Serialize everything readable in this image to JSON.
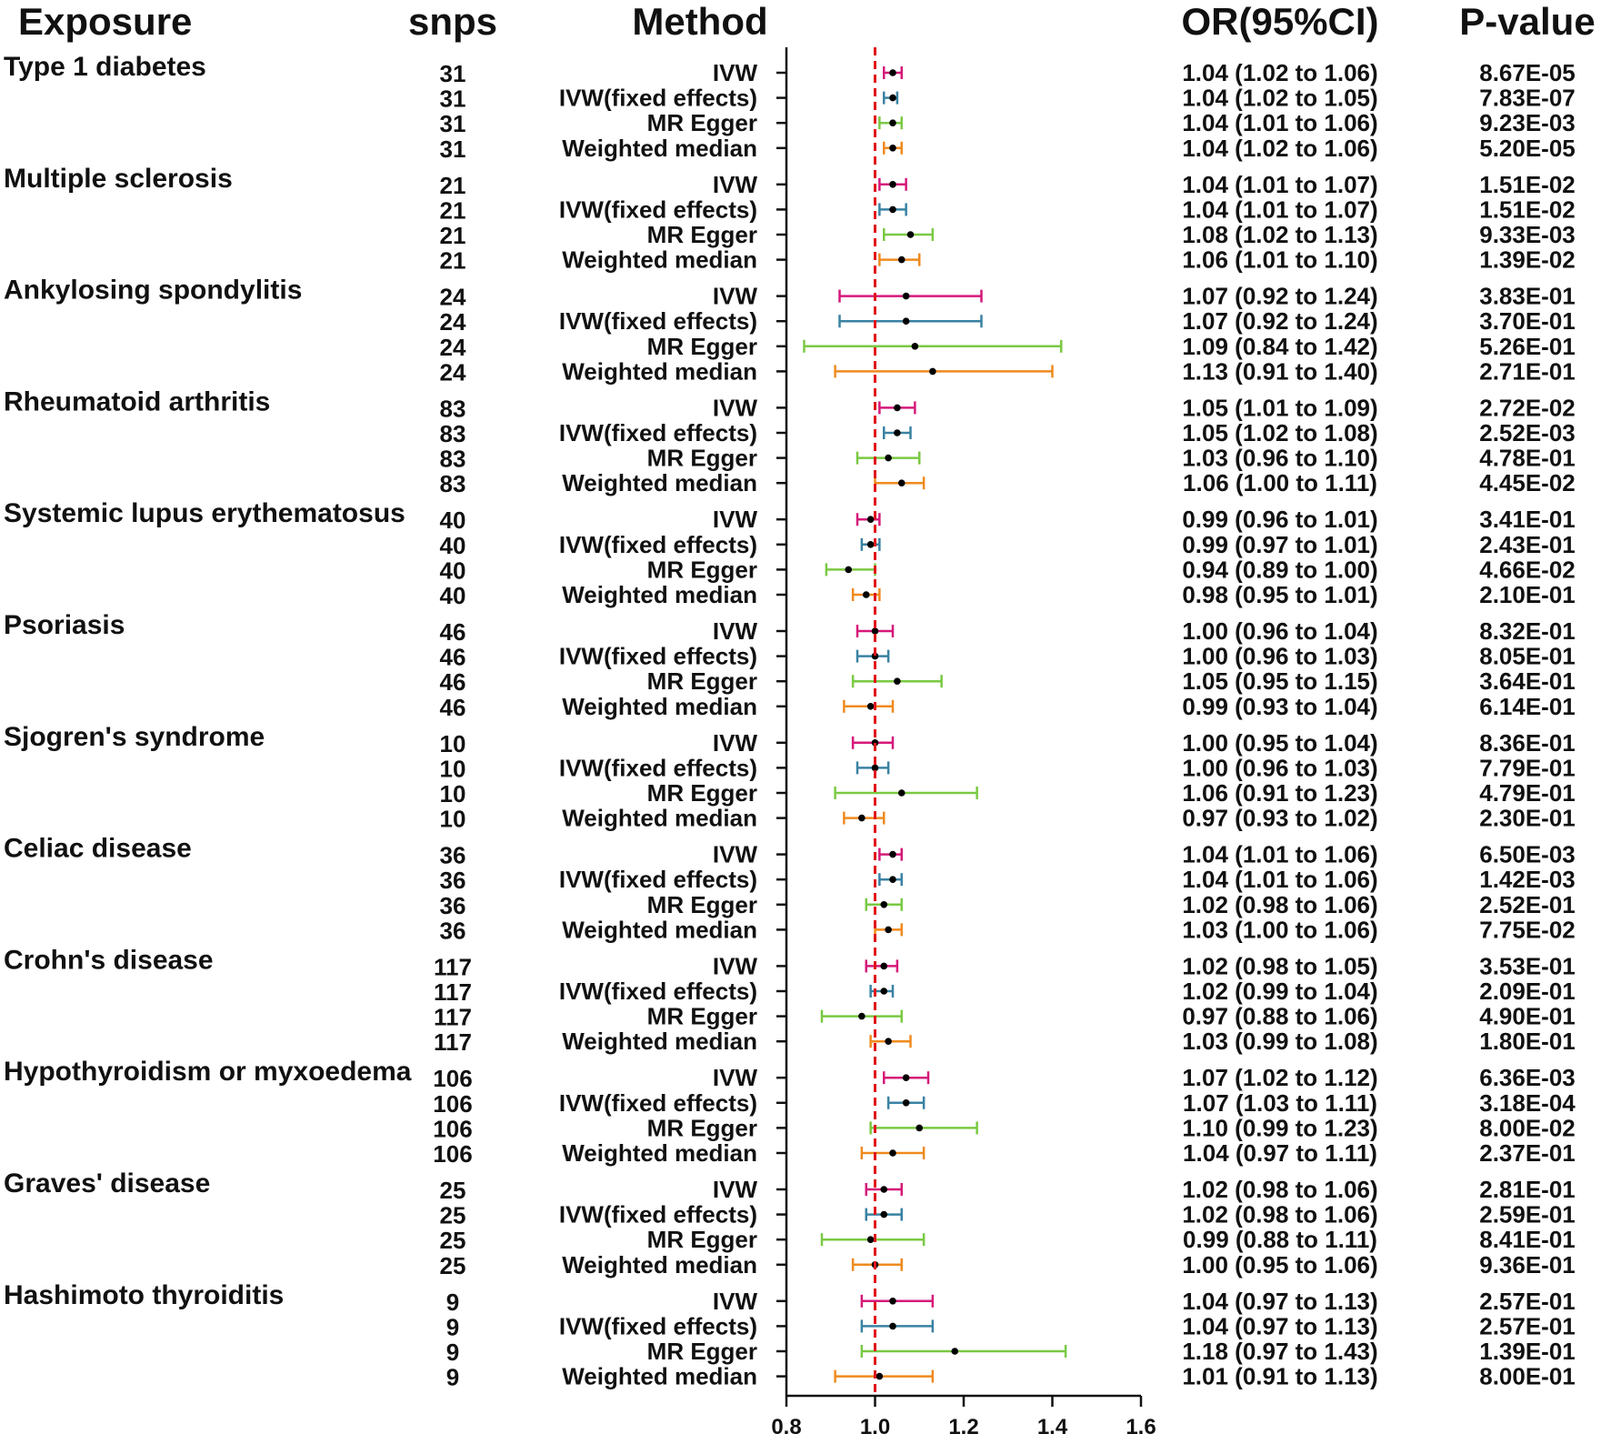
{
  "headers": {
    "exposure": "Exposure",
    "snps": "snps",
    "method": "Method",
    "or": "OR(95%CI)",
    "pvalue": "P-value"
  },
  "chart_data": {
    "type": "forest",
    "xlim": [
      0.8,
      1.6
    ],
    "xticks": [
      "0.8",
      "1.0",
      "1.2",
      "1.4",
      "1.6"
    ],
    "reference_line": 1.0,
    "reference_line_color": "#e0161b",
    "method_colors": {
      "IVW": "#d6197a",
      "IVW(fixed effects)": "#3a82a3",
      "MR Egger": "#7ac943",
      "Weighted median": "#ef8a1f"
    },
    "point_color": "#000000",
    "groups": [
      {
        "exposure": "Type 1 diabetes",
        "rows": [
          {
            "snps": "31",
            "method": "IVW",
            "or": 1.04,
            "lo": 1.02,
            "hi": 1.06,
            "ci_text": "1.04 (1.02 to 1.06)",
            "p": "8.67E-05"
          },
          {
            "snps": "31",
            "method": "IVW(fixed effects)",
            "or": 1.04,
            "lo": 1.02,
            "hi": 1.05,
            "ci_text": "1.04 (1.02 to 1.05)",
            "p": "7.83E-07"
          },
          {
            "snps": "31",
            "method": "MR Egger",
            "or": 1.04,
            "lo": 1.01,
            "hi": 1.06,
            "ci_text": "1.04 (1.01 to 1.06)",
            "p": "9.23E-03"
          },
          {
            "snps": "31",
            "method": "Weighted median",
            "or": 1.04,
            "lo": 1.02,
            "hi": 1.06,
            "ci_text": "1.04 (1.02 to 1.06)",
            "p": "5.20E-05"
          }
        ]
      },
      {
        "exposure": "Multiple sclerosis",
        "rows": [
          {
            "snps": "21",
            "method": "IVW",
            "or": 1.04,
            "lo": 1.01,
            "hi": 1.07,
            "ci_text": "1.04 (1.01 to 1.07)",
            "p": "1.51E-02"
          },
          {
            "snps": "21",
            "method": "IVW(fixed effects)",
            "or": 1.04,
            "lo": 1.01,
            "hi": 1.07,
            "ci_text": "1.04 (1.01 to 1.07)",
            "p": "1.51E-02"
          },
          {
            "snps": "21",
            "method": "MR Egger",
            "or": 1.08,
            "lo": 1.02,
            "hi": 1.13,
            "ci_text": "1.08 (1.02 to 1.13)",
            "p": "9.33E-03"
          },
          {
            "snps": "21",
            "method": "Weighted median",
            "or": 1.06,
            "lo": 1.01,
            "hi": 1.1,
            "ci_text": "1.06 (1.01 to 1.10)",
            "p": "1.39E-02"
          }
        ]
      },
      {
        "exposure": "Ankylosing spondylitis",
        "rows": [
          {
            "snps": "24",
            "method": "IVW",
            "or": 1.07,
            "lo": 0.92,
            "hi": 1.24,
            "ci_text": "1.07 (0.92 to 1.24)",
            "p": "3.83E-01"
          },
          {
            "snps": "24",
            "method": "IVW(fixed effects)",
            "or": 1.07,
            "lo": 0.92,
            "hi": 1.24,
            "ci_text": "1.07 (0.92 to 1.24)",
            "p": "3.70E-01"
          },
          {
            "snps": "24",
            "method": "MR Egger",
            "or": 1.09,
            "lo": 0.84,
            "hi": 1.42,
            "ci_text": "1.09 (0.84 to 1.42)",
            "p": "5.26E-01"
          },
          {
            "snps": "24",
            "method": "Weighted median",
            "or": 1.13,
            "lo": 0.91,
            "hi": 1.4,
            "ci_text": "1.13 (0.91 to 1.40)",
            "p": "2.71E-01"
          }
        ]
      },
      {
        "exposure": "Rheumatoid arthritis",
        "rows": [
          {
            "snps": "83",
            "method": "IVW",
            "or": 1.05,
            "lo": 1.01,
            "hi": 1.09,
            "ci_text": "1.05 (1.01 to 1.09)",
            "p": "2.72E-02"
          },
          {
            "snps": "83",
            "method": "IVW(fixed effects)",
            "or": 1.05,
            "lo": 1.02,
            "hi": 1.08,
            "ci_text": "1.05 (1.02 to 1.08)",
            "p": "2.52E-03"
          },
          {
            "snps": "83",
            "method": "MR Egger",
            "or": 1.03,
            "lo": 0.96,
            "hi": 1.1,
            "ci_text": "1.03 (0.96 to 1.10)",
            "p": "4.78E-01"
          },
          {
            "snps": "83",
            "method": "Weighted median",
            "or": 1.06,
            "lo": 1.0,
            "hi": 1.11,
            "ci_text": "1.06 (1.00 to 1.11)",
            "p": "4.45E-02"
          }
        ]
      },
      {
        "exposure": "Systemic lupus erythematosus",
        "rows": [
          {
            "snps": "40",
            "method": "IVW",
            "or": 0.99,
            "lo": 0.96,
            "hi": 1.01,
            "ci_text": "0.99 (0.96 to 1.01)",
            "p": "3.41E-01"
          },
          {
            "snps": "40",
            "method": "IVW(fixed effects)",
            "or": 0.99,
            "lo": 0.97,
            "hi": 1.01,
            "ci_text": "0.99 (0.97 to 1.01)",
            "p": "2.43E-01"
          },
          {
            "snps": "40",
            "method": "MR Egger",
            "or": 0.94,
            "lo": 0.89,
            "hi": 1.0,
            "ci_text": "0.94 (0.89 to 1.00)",
            "p": "4.66E-02"
          },
          {
            "snps": "40",
            "method": "Weighted median",
            "or": 0.98,
            "lo": 0.95,
            "hi": 1.01,
            "ci_text": "0.98 (0.95 to 1.01)",
            "p": "2.10E-01"
          }
        ]
      },
      {
        "exposure": "Psoriasis",
        "rows": [
          {
            "snps": "46",
            "method": "IVW",
            "or": 1.0,
            "lo": 0.96,
            "hi": 1.04,
            "ci_text": "1.00 (0.96 to 1.04)",
            "p": "8.32E-01"
          },
          {
            "snps": "46",
            "method": "IVW(fixed effects)",
            "or": 1.0,
            "lo": 0.96,
            "hi": 1.03,
            "ci_text": "1.00 (0.96 to 1.03)",
            "p": "8.05E-01"
          },
          {
            "snps": "46",
            "method": "MR Egger",
            "or": 1.05,
            "lo": 0.95,
            "hi": 1.15,
            "ci_text": "1.05 (0.95 to 1.15)",
            "p": "3.64E-01"
          },
          {
            "snps": "46",
            "method": "Weighted median",
            "or": 0.99,
            "lo": 0.93,
            "hi": 1.04,
            "ci_text": "0.99 (0.93 to 1.04)",
            "p": "6.14E-01"
          }
        ]
      },
      {
        "exposure": "Sjogren's syndrome",
        "rows": [
          {
            "snps": "10",
            "method": "IVW",
            "or": 1.0,
            "lo": 0.95,
            "hi": 1.04,
            "ci_text": "1.00 (0.95 to 1.04)",
            "p": "8.36E-01"
          },
          {
            "snps": "10",
            "method": "IVW(fixed effects)",
            "or": 1.0,
            "lo": 0.96,
            "hi": 1.03,
            "ci_text": "1.00 (0.96 to 1.03)",
            "p": "7.79E-01"
          },
          {
            "snps": "10",
            "method": "MR Egger",
            "or": 1.06,
            "lo": 0.91,
            "hi": 1.23,
            "ci_text": "1.06 (0.91 to 1.23)",
            "p": "4.79E-01"
          },
          {
            "snps": "10",
            "method": "Weighted median",
            "or": 0.97,
            "lo": 0.93,
            "hi": 1.02,
            "ci_text": "0.97 (0.93 to 1.02)",
            "p": "2.30E-01"
          }
        ]
      },
      {
        "exposure": "Celiac disease",
        "rows": [
          {
            "snps": "36",
            "method": "IVW",
            "or": 1.04,
            "lo": 1.01,
            "hi": 1.06,
            "ci_text": "1.04 (1.01 to 1.06)",
            "p": "6.50E-03"
          },
          {
            "snps": "36",
            "method": "IVW(fixed effects)",
            "or": 1.04,
            "lo": 1.01,
            "hi": 1.06,
            "ci_text": "1.04 (1.01 to 1.06)",
            "p": "1.42E-03"
          },
          {
            "snps": "36",
            "method": "MR Egger",
            "or": 1.02,
            "lo": 0.98,
            "hi": 1.06,
            "ci_text": "1.02 (0.98 to 1.06)",
            "p": "2.52E-01"
          },
          {
            "snps": "36",
            "method": "Weighted median",
            "or": 1.03,
            "lo": 1.0,
            "hi": 1.06,
            "ci_text": "1.03 (1.00 to 1.06)",
            "p": "7.75E-02"
          }
        ]
      },
      {
        "exposure": "Crohn's disease",
        "rows": [
          {
            "snps": "117",
            "method": "IVW",
            "or": 1.02,
            "lo": 0.98,
            "hi": 1.05,
            "ci_text": "1.02 (0.98 to 1.05)",
            "p": "3.53E-01"
          },
          {
            "snps": "117",
            "method": "IVW(fixed effects)",
            "or": 1.02,
            "lo": 0.99,
            "hi": 1.04,
            "ci_text": "1.02 (0.99 to 1.04)",
            "p": "2.09E-01"
          },
          {
            "snps": "117",
            "method": "MR Egger",
            "or": 0.97,
            "lo": 0.88,
            "hi": 1.06,
            "ci_text": "0.97 (0.88 to 1.06)",
            "p": "4.90E-01"
          },
          {
            "snps": "117",
            "method": "Weighted median",
            "or": 1.03,
            "lo": 0.99,
            "hi": 1.08,
            "ci_text": "1.03 (0.99 to 1.08)",
            "p": "1.80E-01"
          }
        ]
      },
      {
        "exposure": "Hypothyroidism or myxoedema",
        "rows": [
          {
            "snps": "106",
            "method": "IVW",
            "or": 1.07,
            "lo": 1.02,
            "hi": 1.12,
            "ci_text": "1.07 (1.02 to 1.12)",
            "p": "6.36E-03"
          },
          {
            "snps": "106",
            "method": "IVW(fixed effects)",
            "or": 1.07,
            "lo": 1.03,
            "hi": 1.11,
            "ci_text": "1.07 (1.03 to 1.11)",
            "p": "3.18E-04"
          },
          {
            "snps": "106",
            "method": "MR Egger",
            "or": 1.1,
            "lo": 0.99,
            "hi": 1.23,
            "ci_text": "1.10 (0.99 to 1.23)",
            "p": "8.00E-02"
          },
          {
            "snps": "106",
            "method": "Weighted median",
            "or": 1.04,
            "lo": 0.97,
            "hi": 1.11,
            "ci_text": "1.04 (0.97 to 1.11)",
            "p": "2.37E-01"
          }
        ]
      },
      {
        "exposure": "Graves' disease",
        "rows": [
          {
            "snps": "25",
            "method": "IVW",
            "or": 1.02,
            "lo": 0.98,
            "hi": 1.06,
            "ci_text": "1.02 (0.98 to 1.06)",
            "p": "2.81E-01"
          },
          {
            "snps": "25",
            "method": "IVW(fixed effects)",
            "or": 1.02,
            "lo": 0.98,
            "hi": 1.06,
            "ci_text": "1.02 (0.98 to 1.06)",
            "p": "2.59E-01"
          },
          {
            "snps": "25",
            "method": "MR Egger",
            "or": 0.99,
            "lo": 0.88,
            "hi": 1.11,
            "ci_text": "0.99 (0.88 to 1.11)",
            "p": "8.41E-01"
          },
          {
            "snps": "25",
            "method": "Weighted median",
            "or": 1.0,
            "lo": 0.95,
            "hi": 1.06,
            "ci_text": "1.00 (0.95 to 1.06)",
            "p": "9.36E-01"
          }
        ]
      },
      {
        "exposure": "Hashimoto thyroiditis",
        "rows": [
          {
            "snps": "9",
            "method": "IVW",
            "or": 1.04,
            "lo": 0.97,
            "hi": 1.13,
            "ci_text": "1.04 (0.97 to 1.13)",
            "p": "2.57E-01"
          },
          {
            "snps": "9",
            "method": "IVW(fixed effects)",
            "or": 1.04,
            "lo": 0.97,
            "hi": 1.13,
            "ci_text": "1.04 (0.97 to 1.13)",
            "p": "2.57E-01"
          },
          {
            "snps": "9",
            "method": "MR Egger",
            "or": 1.18,
            "lo": 0.97,
            "hi": 1.43,
            "ci_text": "1.18 (0.97 to 1.43)",
            "p": "1.39E-01"
          },
          {
            "snps": "9",
            "method": "Weighted median",
            "or": 1.01,
            "lo": 0.91,
            "hi": 1.13,
            "ci_text": "1.01 (0.91 to 1.13)",
            "p": "8.00E-01"
          }
        ]
      }
    ]
  }
}
